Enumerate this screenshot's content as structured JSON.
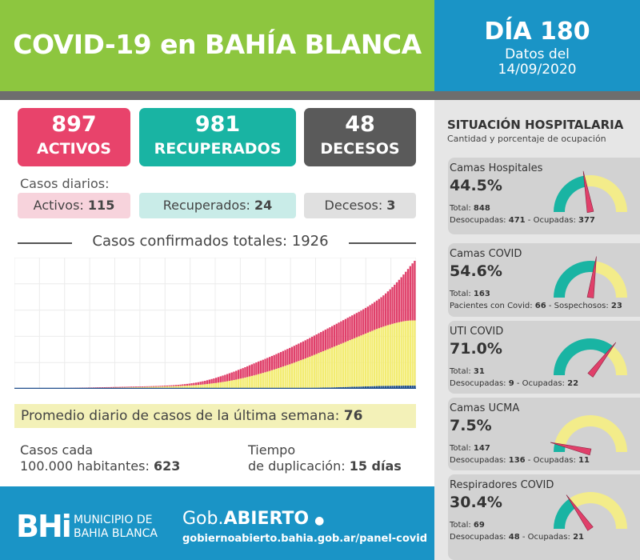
{
  "header": {
    "title": "COVID-19 en BAHÍA BLANCA",
    "day": "DÍA 180",
    "datos_del": "Datos del",
    "date": "14/09/2020"
  },
  "summary": {
    "activos": {
      "value": "897",
      "label": "ACTIVOS",
      "color": "#e8436b"
    },
    "recuperados": {
      "value": "981",
      "label": "RECUPERADOS",
      "color": "#19b4a3"
    },
    "decesos": {
      "value": "48",
      "label": "DECESOS",
      "color": "#5a5a5a"
    }
  },
  "daily": {
    "title": "Casos diarios:",
    "activos_label": "Activos:",
    "activos_value": "115",
    "recuperados_label": "Recuperados:",
    "recuperados_value": "24",
    "decesos_label": "Decesos:",
    "decesos_value": "3"
  },
  "chart_data": {
    "type": "bar",
    "title": "Casos confirmados totales: 1926",
    "stacked": true,
    "grid": true,
    "n_days": 180,
    "series": [
      {
        "color": "#1f4e8c",
        "values": [
          0,
          0,
          0,
          0,
          0,
          0,
          0,
          0,
          0,
          0,
          0,
          0,
          0,
          0,
          0,
          0,
          0,
          0,
          0,
          0,
          0,
          0,
          0,
          0,
          0,
          0,
          0,
          0,
          0,
          0,
          0,
          0,
          0,
          0,
          0,
          0,
          0,
          0,
          0,
          0,
          0,
          0,
          0,
          0,
          0,
          0,
          0,
          0,
          0,
          0,
          0,
          0,
          0,
          0,
          0,
          0,
          0,
          0,
          0,
          0,
          0,
          0,
          0,
          0,
          0,
          0,
          0,
          0,
          0,
          0,
          0,
          0,
          0,
          0,
          0,
          0,
          0,
          0,
          0,
          0,
          0,
          0,
          0,
          0,
          0,
          0,
          0,
          0,
          0,
          0,
          0,
          0,
          0,
          0,
          0,
          0,
          0,
          0,
          0,
          0,
          1,
          1,
          1,
          1,
          1,
          2,
          2,
          2,
          2,
          3,
          3,
          3,
          4,
          4,
          4,
          5,
          5,
          6,
          6,
          6,
          7,
          7,
          8,
          8,
          9,
          9,
          10,
          10,
          11,
          11,
          12,
          13,
          13,
          14,
          15,
          15,
          16,
          17,
          18,
          19,
          20,
          20,
          21,
          22,
          23,
          24,
          25,
          26,
          27,
          28,
          29,
          30,
          31,
          32,
          33,
          34,
          35,
          36,
          37,
          38,
          39,
          40,
          41,
          42,
          43,
          44,
          44,
          45,
          45,
          46,
          46,
          47,
          47,
          47,
          48,
          48,
          48,
          48,
          48,
          48
        ]
      },
      {
        "color": "#f3ec72",
        "values": [
          0,
          0,
          0,
          0,
          0,
          0,
          0,
          0,
          0,
          0,
          0,
          0,
          0,
          0,
          0,
          0,
          0,
          0,
          1,
          1,
          1,
          2,
          2,
          3,
          3,
          4,
          4,
          5,
          5,
          6,
          7,
          7,
          8,
          9,
          9,
          10,
          11,
          12,
          12,
          13,
          14,
          15,
          15,
          16,
          17,
          18,
          18,
          19,
          20,
          20,
          21,
          22,
          23,
          23,
          24,
          25,
          26,
          26,
          27,
          28,
          29,
          30,
          30,
          31,
          32,
          33,
          34,
          35,
          36,
          37,
          38,
          39,
          41,
          42,
          43,
          45,
          46,
          48,
          50,
          52,
          54,
          56,
          59,
          62,
          65,
          68,
          72,
          76,
          80,
          84,
          88,
          93,
          98,
          103,
          108,
          114,
          120,
          126,
          132,
          139,
          146,
          153,
          160,
          168,
          176,
          184,
          192,
          200,
          209,
          218,
          227,
          236,
          245,
          255,
          265,
          275,
          285,
          295,
          306,
          317,
          328,
          339,
          350,
          361,
          372,
          384,
          396,
          408,
          420,
          432,
          444,
          457,
          470,
          483,
          496,
          509,
          522,
          535,
          548,
          561,
          574,
          587,
          600,
          613,
          626,
          639,
          652,
          665,
          678,
          691,
          704,
          717,
          730,
          743,
          756,
          769,
          782,
          795,
          808,
          821,
          834,
          847,
          859,
          870,
          881,
          892,
          903,
          913,
          922,
          931,
          940,
          948,
          955,
          962,
          968,
          973,
          977,
          980,
          981,
          981
        ]
      },
      {
        "color": "#e0406a",
        "values": [
          1,
          1,
          2,
          2,
          3,
          3,
          4,
          5,
          5,
          6,
          7,
          7,
          8,
          8,
          9,
          9,
          10,
          10,
          10,
          10,
          10,
          10,
          10,
          10,
          10,
          10,
          10,
          10,
          10,
          10,
          10,
          10,
          10,
          10,
          10,
          10,
          10,
          10,
          10,
          10,
          10,
          10,
          10,
          10,
          10,
          10,
          10,
          10,
          10,
          10,
          10,
          10,
          10,
          10,
          10,
          10,
          10,
          10,
          10,
          10,
          10,
          10,
          11,
          11,
          11,
          12,
          12,
          13,
          13,
          14,
          15,
          16,
          17,
          18,
          20,
          22,
          24,
          26,
          28,
          31,
          34,
          37,
          40,
          44,
          48,
          52,
          57,
          62,
          67,
          72,
          78,
          84,
          90,
          96,
          102,
          108,
          114,
          120,
          126,
          132,
          138,
          144,
          150,
          156,
          162,
          168,
          174,
          180,
          186,
          190,
          194,
          198,
          202,
          206,
          210,
          214,
          218,
          222,
          226,
          230,
          234,
          238,
          242,
          246,
          250,
          254,
          258,
          262,
          266,
          270,
          274,
          278,
          282,
          286,
          290,
          294,
          298,
          302,
          306,
          310,
          314,
          318,
          322,
          326,
          330,
          334,
          338,
          342,
          346,
          350,
          354,
          358,
          362,
          366,
          370,
          374,
          380,
          386,
          392,
          400,
          408,
          418,
          428,
          440,
          454,
          470,
          488,
          508,
          530,
          554,
          580,
          608,
          638,
          670,
          704,
          740,
          778,
          818,
          858,
          897
        ]
      }
    ]
  },
  "promedio": {
    "label": "Promedio diario de casos de la última semana:",
    "value": "76"
  },
  "casos100": {
    "line1": "Casos cada",
    "line2": "100.000 habitantes:",
    "value": "623"
  },
  "tiempo": {
    "line1": "Tiempo",
    "line2": "de duplicación:",
    "value": "15 días"
  },
  "footer": {
    "logo": "BHi",
    "muni1": "MUNICIPIO DE",
    "muni2": "BAHIA BLANCA",
    "gob_pre": "Gob.",
    "gob_bold": "ABIERTO",
    "url": "gobiernoabierto.bahia.gob.ar/panel-covid"
  },
  "hospital": {
    "title": "SITUACIÓN HOSPITALARIA",
    "subtitle": "Cantidad y porcentaje de ocupación",
    "cards": [
      {
        "name": "Camas Hospitales",
        "pct": "44.5%",
        "pct_value": 44.5,
        "total_label": "Total:",
        "total": "848",
        "a_label": "Desocupadas:",
        "a": "471",
        "b_label": "Ocupadas:",
        "b": "377"
      },
      {
        "name": "Camas COVID",
        "pct": "54.6%",
        "pct_value": 54.6,
        "total_label": "Total:",
        "total": "163",
        "a_label": "Pacientes con Covid:",
        "a": "66",
        "b_label": "Sospechosos:",
        "b": "23"
      },
      {
        "name": "UTI COVID",
        "pct": "71.0%",
        "pct_value": 71.0,
        "total_label": "Total:",
        "total": "31",
        "a_label": "Desocupadas:",
        "a": "9",
        "b_label": "Ocupadas:",
        "b": "22"
      },
      {
        "name": "Camas UCMA",
        "pct": "7.5%",
        "pct_value": 7.5,
        "total_label": "Total:",
        "total": "147",
        "a_label": "Desocupadas:",
        "a": "136",
        "b_label": "Ocupadas:",
        "b": "11"
      },
      {
        "name": "Respiradores COVID",
        "pct": "30.4%",
        "pct_value": 30.4,
        "total_label": "Total:",
        "total": "69",
        "a_label": "Desocupadas:",
        "a": "48",
        "b_label": "Ocupadas:",
        "b": "21"
      }
    ],
    "gauge_colors": {
      "teal": "#19b4a3",
      "yellow": "#f3ec8a",
      "needle": "#e0406a"
    }
  }
}
